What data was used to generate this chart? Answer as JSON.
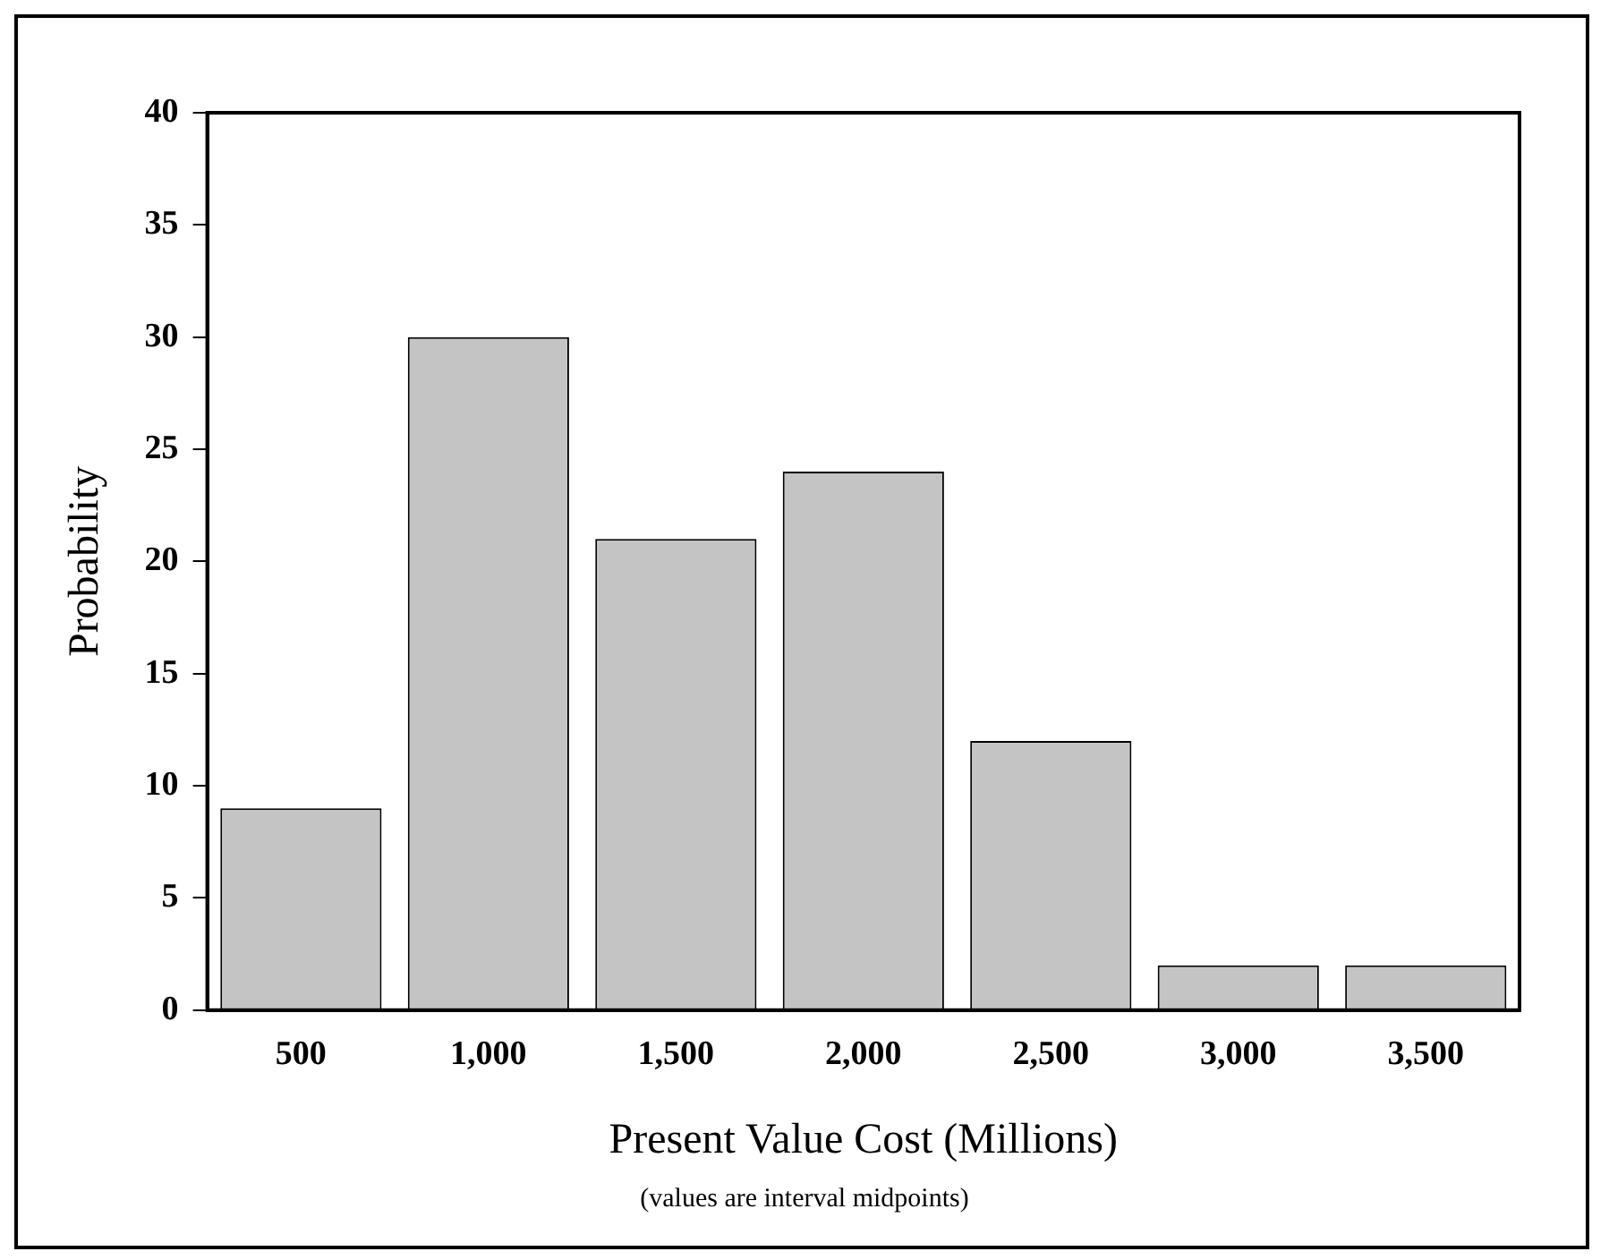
{
  "chart_data": {
    "type": "bar",
    "xlabel": "Present Value Cost (Millions)",
    "ylabel": "Probability",
    "categories": [
      "500",
      "1,000",
      "1,500",
      "2,000",
      "2,500",
      "3,000",
      "3,500"
    ],
    "values": [
      9,
      30,
      21,
      24,
      12,
      2,
      2
    ],
    "color": "#c4c4c4",
    "ylim": [
      0,
      40
    ],
    "yticks": [
      0,
      5,
      10,
      15,
      20,
      25,
      30,
      35,
      40
    ],
    "grid": false,
    "legend": false,
    "annotations": [
      "(values are interval midpoints)"
    ]
  }
}
